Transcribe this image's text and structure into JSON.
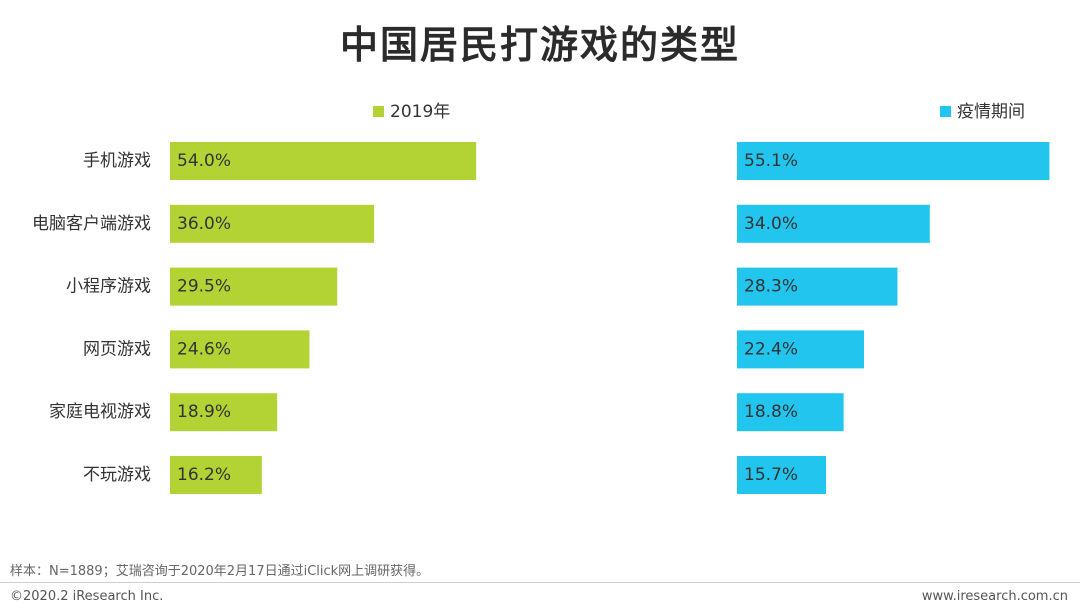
{
  "title": "中国居民打游戏的类型",
  "footnote": "样本：N=1889；艾瑞咨询于2020年2月17日通过iClick网上调研获得。",
  "copyright": "©2020.2 iResearch Inc.",
  "site": "www.iresearch.com.cn",
  "chart_data": {
    "type": "bar",
    "orientation": "horizontal",
    "title": "中国居民打游戏的类型",
    "categories": [
      "手机游戏",
      "电脑客户端游戏",
      "小程序游戏",
      "网页游戏",
      "家庭电视游戏",
      "不玩游戏"
    ],
    "series": [
      {
        "name": "2019年",
        "color": "#b3d334",
        "values": [
          54.0,
          36.0,
          29.5,
          24.6,
          18.9,
          16.2
        ],
        "labels": [
          "54.0%",
          "36.0%",
          "29.5%",
          "24.6%",
          "18.9%",
          "16.2%"
        ]
      },
      {
        "name": "疫情期间",
        "color": "#22c5ee",
        "values": [
          55.1,
          34.0,
          28.3,
          22.4,
          18.8,
          15.7
        ],
        "labels": [
          "55.1%",
          "34.0%",
          "28.3%",
          "22.4%",
          "18.8%",
          "15.7%"
        ]
      }
    ],
    "legend": "top",
    "grid": false
  }
}
